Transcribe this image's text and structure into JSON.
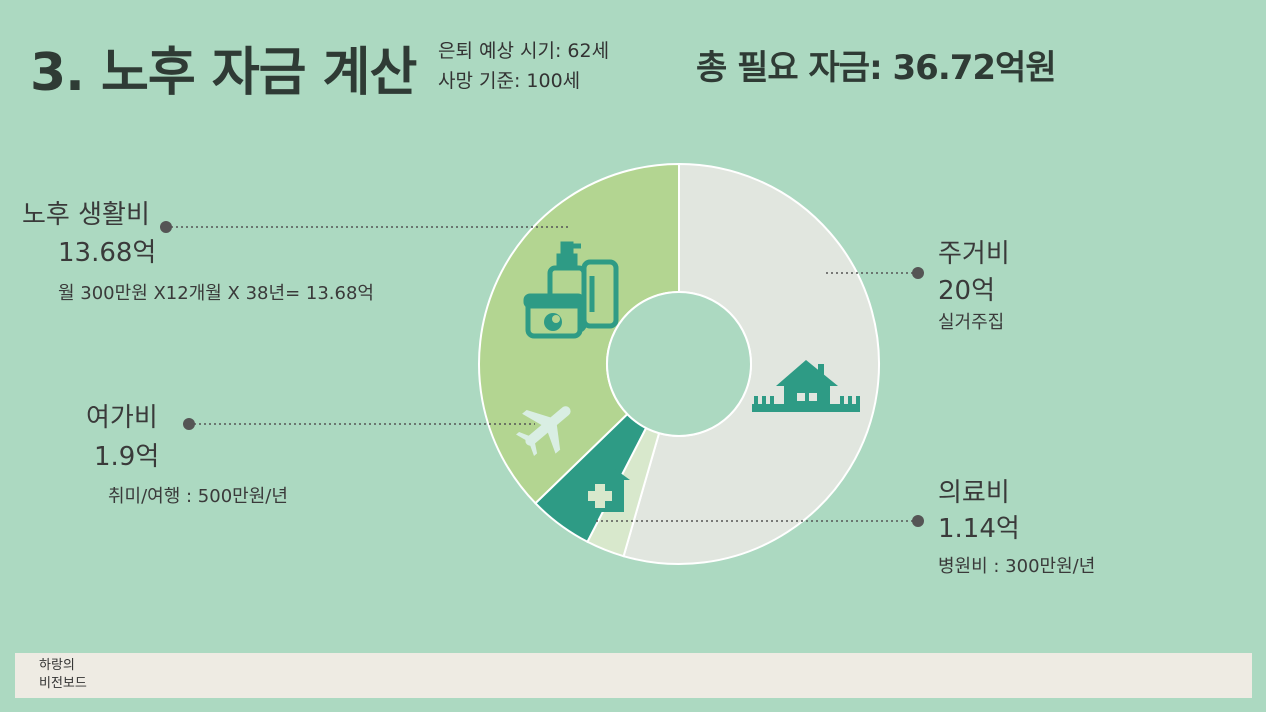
{
  "header": {
    "title": "3. 노후 자금 계산",
    "retire_age": "은퇴 예상 시기: 62세",
    "death_age": "사망 기준: 100세",
    "total": "총 필요 자금: 36.72억원"
  },
  "chart_data": {
    "type": "pie",
    "title": "",
    "unit": "억",
    "slices": [
      {
        "name": "주거비",
        "value": 20,
        "value_label": "20억",
        "note": "실거주집",
        "color": "#e1e6df",
        "icon": "house-icon"
      },
      {
        "name": "의료비",
        "value": 1.14,
        "value_label": "1.14억",
        "note": "병원비 : 300만원/년",
        "color": "#d8e8cc",
        "icon": "hospital-icon"
      },
      {
        "name": "여가비",
        "value": 1.9,
        "value_label": "1.9억",
        "note": "취미/여행 : 500만원/년",
        "color": "#2e9b85",
        "icon": "airplane-icon"
      },
      {
        "name": "노후 생활비",
        "value": 13.68,
        "value_label": "13.68억",
        "note": "월 300만원 X12개월 X 38년= 13.68억",
        "color": "#b3d591",
        "icon": "cosmetics-icon"
      }
    ]
  },
  "footer": {
    "line1": "하랑의",
    "line2": "비전보드"
  }
}
